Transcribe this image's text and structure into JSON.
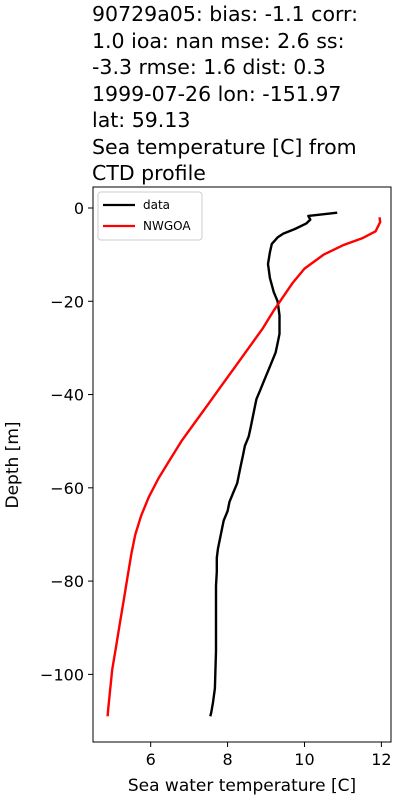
{
  "title_lines": [
    "90729a05: bias: -1.1  corr:",
    "1.0  ioa: nan  mse: 2.6  ss:",
    "-3.3  rmse: 1.6  dist: 0.3",
    "1999-07-26 lon: -151.97",
    "lat: 59.13",
    "Sea temperature [C] from",
    "CTD profile"
  ],
  "chart_data": {
    "type": "line",
    "xlabel": "Sea water temperature [C]",
    "ylabel": "Depth [m]",
    "xlim": [
      4.5,
      12.25
    ],
    "ylim": [
      -114.5,
      4.5
    ],
    "xticks": [
      6,
      8,
      10,
      12
    ],
    "yticks": [
      0,
      -20,
      -40,
      -60,
      -80,
      -100
    ],
    "grid": false,
    "legend_position": "top-left",
    "series": [
      {
        "name": "data",
        "color": "#000000",
        "points": [
          [
            10.85,
            -1
          ],
          [
            10.1,
            -1.7
          ],
          [
            10.15,
            -2.5
          ],
          [
            10.05,
            -3.3
          ],
          [
            9.75,
            -4.5
          ],
          [
            9.45,
            -5.5
          ],
          [
            9.3,
            -6.3
          ],
          [
            9.15,
            -7.7
          ],
          [
            9.1,
            -9.5
          ],
          [
            9.05,
            -12
          ],
          [
            9.1,
            -15
          ],
          [
            9.2,
            -18
          ],
          [
            9.3,
            -20
          ],
          [
            9.35,
            -23
          ],
          [
            9.35,
            -25
          ],
          [
            9.35,
            -27
          ],
          [
            9.3,
            -29
          ],
          [
            9.25,
            -31
          ],
          [
            9.15,
            -33
          ],
          [
            9.05,
            -35
          ],
          [
            8.95,
            -37
          ],
          [
            8.85,
            -39
          ],
          [
            8.75,
            -41
          ],
          [
            8.7,
            -43
          ],
          [
            8.65,
            -45
          ],
          [
            8.6,
            -47
          ],
          [
            8.55,
            -49
          ],
          [
            8.45,
            -51
          ],
          [
            8.4,
            -53
          ],
          [
            8.35,
            -55
          ],
          [
            8.3,
            -57
          ],
          [
            8.25,
            -59
          ],
          [
            8.15,
            -61
          ],
          [
            8.05,
            -63
          ],
          [
            8.0,
            -65
          ],
          [
            7.9,
            -67
          ],
          [
            7.85,
            -69
          ],
          [
            7.8,
            -71
          ],
          [
            7.75,
            -73
          ],
          [
            7.72,
            -75
          ],
          [
            7.72,
            -78
          ],
          [
            7.7,
            -81
          ],
          [
            7.7,
            -85
          ],
          [
            7.7,
            -90
          ],
          [
            7.7,
            -95
          ],
          [
            7.68,
            -100
          ],
          [
            7.67,
            -103
          ],
          [
            7.62,
            -106
          ],
          [
            7.58,
            -108
          ],
          [
            7.55,
            -109
          ]
        ]
      },
      {
        "name": "NWGOA",
        "color": "#ff0000",
        "points": [
          [
            11.95,
            -2
          ],
          [
            11.97,
            -3
          ],
          [
            11.85,
            -5
          ],
          [
            11.5,
            -6.5
          ],
          [
            11.0,
            -8
          ],
          [
            10.5,
            -10
          ],
          [
            10.0,
            -13
          ],
          [
            9.7,
            -16
          ],
          [
            9.45,
            -19
          ],
          [
            9.2,
            -22
          ],
          [
            8.9,
            -26
          ],
          [
            8.55,
            -30
          ],
          [
            8.2,
            -34
          ],
          [
            7.85,
            -38
          ],
          [
            7.5,
            -42
          ],
          [
            7.15,
            -46
          ],
          [
            6.8,
            -50
          ],
          [
            6.5,
            -54
          ],
          [
            6.2,
            -58
          ],
          [
            5.95,
            -62
          ],
          [
            5.75,
            -66
          ],
          [
            5.6,
            -70
          ],
          [
            5.5,
            -74
          ],
          [
            5.4,
            -79
          ],
          [
            5.3,
            -84
          ],
          [
            5.2,
            -89
          ],
          [
            5.1,
            -94
          ],
          [
            5.0,
            -99
          ],
          [
            4.95,
            -103
          ],
          [
            4.9,
            -107
          ],
          [
            4.88,
            -109
          ]
        ]
      }
    ]
  }
}
